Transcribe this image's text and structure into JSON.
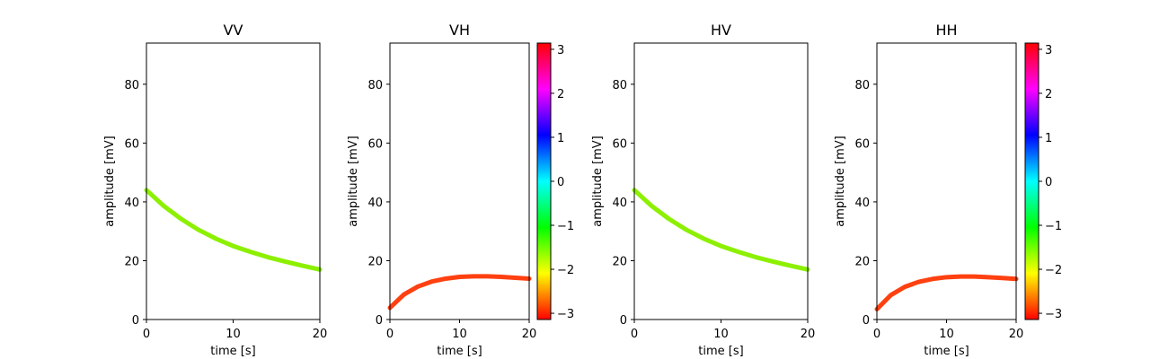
{
  "chart_data": [
    {
      "type": "line",
      "title": "VV",
      "xlabel": "time [s]",
      "ylabel": "amplitude [mV]",
      "xlim": [
        0,
        20
      ],
      "ylim": [
        0,
        94
      ],
      "xticks": [
        "0",
        "10",
        "20"
      ],
      "yticks": [
        "0",
        "20",
        "40",
        "60",
        "80"
      ],
      "series": [
        {
          "x": [
            0,
            2,
            4,
            6,
            8,
            10,
            12,
            14,
            16,
            18,
            20
          ],
          "y": [
            44,
            38.6,
            34.2,
            30.5,
            27.5,
            25.0,
            23.0,
            21.2,
            19.7,
            18.3,
            17.0
          ],
          "color": "#8cf000"
        }
      ],
      "colorbar": false
    },
    {
      "type": "line",
      "title": "VH",
      "xlabel": "time [s]",
      "ylabel": "amplitude [mV]",
      "xlim": [
        0,
        20
      ],
      "ylim": [
        0,
        94
      ],
      "xticks": [
        "0",
        "10",
        "20"
      ],
      "yticks": [
        "0",
        "20",
        "40",
        "60",
        "80"
      ],
      "series": [
        {
          "x": [
            0,
            2,
            4,
            6,
            8,
            10,
            12,
            14,
            16,
            18,
            20
          ],
          "y": [
            4,
            8.5,
            11.2,
            12.9,
            13.9,
            14.5,
            14.7,
            14.7,
            14.5,
            14.2,
            13.9
          ],
          "color": "#ff4010"
        }
      ],
      "colorbar": true,
      "colorbar_ticks": [
        "3",
        "2",
        "1",
        "0",
        "−1",
        "−2",
        "−3"
      ],
      "colorbar_range": [
        -3.14159,
        3.14159
      ]
    },
    {
      "type": "line",
      "title": "HV",
      "xlabel": "time [s]",
      "ylabel": "amplitude [mV]",
      "xlim": [
        0,
        20
      ],
      "ylim": [
        0,
        94
      ],
      "xticks": [
        "0",
        "10",
        "20"
      ],
      "yticks": [
        "0",
        "20",
        "40",
        "60",
        "80"
      ],
      "series": [
        {
          "x": [
            0,
            2,
            4,
            6,
            8,
            10,
            12,
            14,
            16,
            18,
            20
          ],
          "y": [
            44,
            38.6,
            34.2,
            30.5,
            27.5,
            25.0,
            23.0,
            21.2,
            19.7,
            18.3,
            17.0
          ],
          "color": "#8cf000"
        }
      ],
      "colorbar": false
    },
    {
      "type": "line",
      "title": "HH",
      "xlabel": "time [s]",
      "ylabel": "amplitude [mV]",
      "xlim": [
        0,
        20
      ],
      "ylim": [
        0,
        94
      ],
      "xticks": [
        "0",
        "10",
        "20"
      ],
      "yticks": [
        "0",
        "20",
        "40",
        "60",
        "80"
      ],
      "series": [
        {
          "x": [
            0,
            2,
            4,
            6,
            8,
            10,
            12,
            14,
            16,
            18,
            20
          ],
          "y": [
            3.5,
            8.3,
            11.1,
            12.8,
            13.8,
            14.4,
            14.6,
            14.6,
            14.4,
            14.1,
            13.8
          ],
          "color": "#ff4010"
        }
      ],
      "colorbar": true,
      "colorbar_ticks": [
        "3",
        "2",
        "1",
        "0",
        "−1",
        "−2",
        "−3"
      ],
      "colorbar_range": [
        -3.14159,
        3.14159
      ]
    }
  ]
}
